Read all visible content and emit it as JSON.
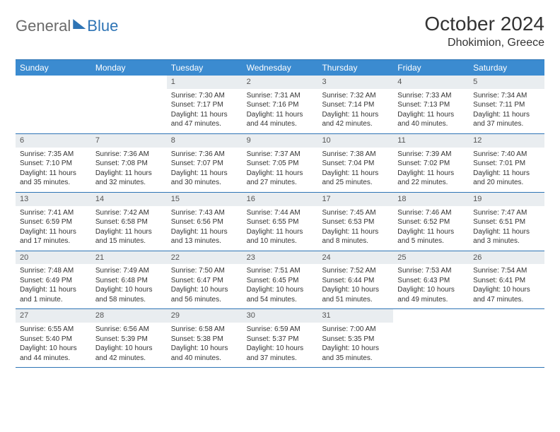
{
  "brand": {
    "part1": "General",
    "part2": "Blue"
  },
  "title": "October 2024",
  "location": "Dhokimion, Greece",
  "colors": {
    "header_bg": "#3b8bd0",
    "header_text": "#ffffff",
    "border": "#2e74b5",
    "daynum_bg": "#e9edf0",
    "text": "#333333",
    "logo_gray": "#6a6a6a",
    "logo_blue": "#2e74b5"
  },
  "weekdays": [
    "Sunday",
    "Monday",
    "Tuesday",
    "Wednesday",
    "Thursday",
    "Friday",
    "Saturday"
  ],
  "weeks": [
    [
      null,
      null,
      {
        "n": "1",
        "sr": "Sunrise: 7:30 AM",
        "ss": "Sunset: 7:17 PM",
        "dl": "Daylight: 11 hours and 47 minutes."
      },
      {
        "n": "2",
        "sr": "Sunrise: 7:31 AM",
        "ss": "Sunset: 7:16 PM",
        "dl": "Daylight: 11 hours and 44 minutes."
      },
      {
        "n": "3",
        "sr": "Sunrise: 7:32 AM",
        "ss": "Sunset: 7:14 PM",
        "dl": "Daylight: 11 hours and 42 minutes."
      },
      {
        "n": "4",
        "sr": "Sunrise: 7:33 AM",
        "ss": "Sunset: 7:13 PM",
        "dl": "Daylight: 11 hours and 40 minutes."
      },
      {
        "n": "5",
        "sr": "Sunrise: 7:34 AM",
        "ss": "Sunset: 7:11 PM",
        "dl": "Daylight: 11 hours and 37 minutes."
      }
    ],
    [
      {
        "n": "6",
        "sr": "Sunrise: 7:35 AM",
        "ss": "Sunset: 7:10 PM",
        "dl": "Daylight: 11 hours and 35 minutes."
      },
      {
        "n": "7",
        "sr": "Sunrise: 7:36 AM",
        "ss": "Sunset: 7:08 PM",
        "dl": "Daylight: 11 hours and 32 minutes."
      },
      {
        "n": "8",
        "sr": "Sunrise: 7:36 AM",
        "ss": "Sunset: 7:07 PM",
        "dl": "Daylight: 11 hours and 30 minutes."
      },
      {
        "n": "9",
        "sr": "Sunrise: 7:37 AM",
        "ss": "Sunset: 7:05 PM",
        "dl": "Daylight: 11 hours and 27 minutes."
      },
      {
        "n": "10",
        "sr": "Sunrise: 7:38 AM",
        "ss": "Sunset: 7:04 PM",
        "dl": "Daylight: 11 hours and 25 minutes."
      },
      {
        "n": "11",
        "sr": "Sunrise: 7:39 AM",
        "ss": "Sunset: 7:02 PM",
        "dl": "Daylight: 11 hours and 22 minutes."
      },
      {
        "n": "12",
        "sr": "Sunrise: 7:40 AM",
        "ss": "Sunset: 7:01 PM",
        "dl": "Daylight: 11 hours and 20 minutes."
      }
    ],
    [
      {
        "n": "13",
        "sr": "Sunrise: 7:41 AM",
        "ss": "Sunset: 6:59 PM",
        "dl": "Daylight: 11 hours and 17 minutes."
      },
      {
        "n": "14",
        "sr": "Sunrise: 7:42 AM",
        "ss": "Sunset: 6:58 PM",
        "dl": "Daylight: 11 hours and 15 minutes."
      },
      {
        "n": "15",
        "sr": "Sunrise: 7:43 AM",
        "ss": "Sunset: 6:56 PM",
        "dl": "Daylight: 11 hours and 13 minutes."
      },
      {
        "n": "16",
        "sr": "Sunrise: 7:44 AM",
        "ss": "Sunset: 6:55 PM",
        "dl": "Daylight: 11 hours and 10 minutes."
      },
      {
        "n": "17",
        "sr": "Sunrise: 7:45 AM",
        "ss": "Sunset: 6:53 PM",
        "dl": "Daylight: 11 hours and 8 minutes."
      },
      {
        "n": "18",
        "sr": "Sunrise: 7:46 AM",
        "ss": "Sunset: 6:52 PM",
        "dl": "Daylight: 11 hours and 5 minutes."
      },
      {
        "n": "19",
        "sr": "Sunrise: 7:47 AM",
        "ss": "Sunset: 6:51 PM",
        "dl": "Daylight: 11 hours and 3 minutes."
      }
    ],
    [
      {
        "n": "20",
        "sr": "Sunrise: 7:48 AM",
        "ss": "Sunset: 6:49 PM",
        "dl": "Daylight: 11 hours and 1 minute."
      },
      {
        "n": "21",
        "sr": "Sunrise: 7:49 AM",
        "ss": "Sunset: 6:48 PM",
        "dl": "Daylight: 10 hours and 58 minutes."
      },
      {
        "n": "22",
        "sr": "Sunrise: 7:50 AM",
        "ss": "Sunset: 6:47 PM",
        "dl": "Daylight: 10 hours and 56 minutes."
      },
      {
        "n": "23",
        "sr": "Sunrise: 7:51 AM",
        "ss": "Sunset: 6:45 PM",
        "dl": "Daylight: 10 hours and 54 minutes."
      },
      {
        "n": "24",
        "sr": "Sunrise: 7:52 AM",
        "ss": "Sunset: 6:44 PM",
        "dl": "Daylight: 10 hours and 51 minutes."
      },
      {
        "n": "25",
        "sr": "Sunrise: 7:53 AM",
        "ss": "Sunset: 6:43 PM",
        "dl": "Daylight: 10 hours and 49 minutes."
      },
      {
        "n": "26",
        "sr": "Sunrise: 7:54 AM",
        "ss": "Sunset: 6:41 PM",
        "dl": "Daylight: 10 hours and 47 minutes."
      }
    ],
    [
      {
        "n": "27",
        "sr": "Sunrise: 6:55 AM",
        "ss": "Sunset: 5:40 PM",
        "dl": "Daylight: 10 hours and 44 minutes."
      },
      {
        "n": "28",
        "sr": "Sunrise: 6:56 AM",
        "ss": "Sunset: 5:39 PM",
        "dl": "Daylight: 10 hours and 42 minutes."
      },
      {
        "n": "29",
        "sr": "Sunrise: 6:58 AM",
        "ss": "Sunset: 5:38 PM",
        "dl": "Daylight: 10 hours and 40 minutes."
      },
      {
        "n": "30",
        "sr": "Sunrise: 6:59 AM",
        "ss": "Sunset: 5:37 PM",
        "dl": "Daylight: 10 hours and 37 minutes."
      },
      {
        "n": "31",
        "sr": "Sunrise: 7:00 AM",
        "ss": "Sunset: 5:35 PM",
        "dl": "Daylight: 10 hours and 35 minutes."
      },
      null,
      null
    ]
  ]
}
